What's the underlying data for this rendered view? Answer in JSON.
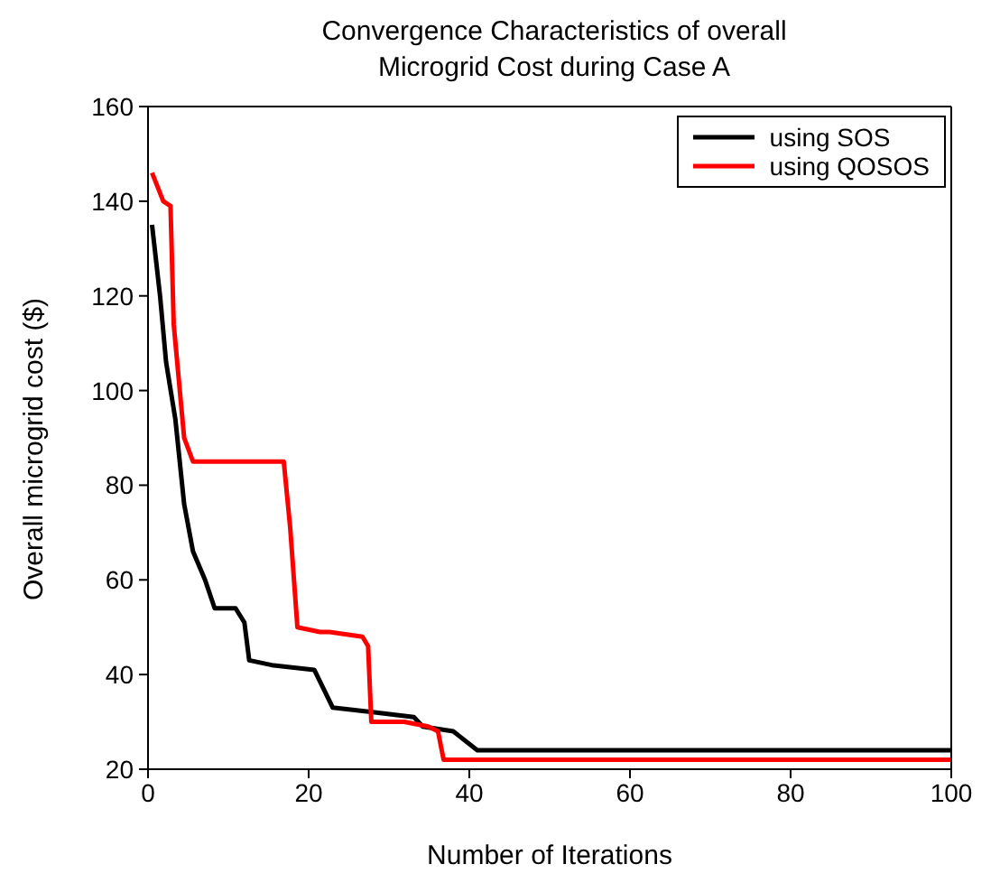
{
  "chart_data": {
    "type": "line",
    "title": "Convergence Characteristics of overall Microgrid Cost during Case A",
    "xlabel": "Number of Iterations",
    "ylabel": "Overall microgrid cost ($)",
    "xlim": [
      0,
      100
    ],
    "xticks": [
      0,
      20,
      40,
      60,
      80,
      100
    ],
    "ylim": [
      20,
      160
    ],
    "yticks": [
      20,
      40,
      60,
      80,
      100,
      120,
      140,
      160
    ],
    "grid": false,
    "legend": "top right",
    "line_style": "solid",
    "marker": "none",
    "series": [
      {
        "name": "using SOS",
        "color": "#000000",
        "x": [
          0.5,
          1.5,
          2.25,
          3.4,
          4.5,
          5.6,
          7.1,
          8.3,
          10.9,
          12,
          12.6,
          15.4,
          20.7,
          23,
          28.2,
          33.1,
          34.2,
          38,
          41,
          100
        ],
        "values": [
          135,
          120,
          106,
          94,
          76,
          66,
          60,
          54,
          54,
          51,
          43,
          42,
          41,
          33,
          32,
          31,
          29,
          28,
          24,
          24
        ]
      },
      {
        "name": "using QOSOS",
        "color": "#ff0000",
        "x": [
          0.5,
          1.9,
          2.8,
          3.2,
          4.5,
          5.6,
          16.9,
          17.7,
          18.6,
          21.4,
          22.6,
          26.7,
          27.4,
          27.8,
          31.9,
          34.9,
          36.1,
          36.8,
          100
        ],
        "values": [
          146,
          140,
          139,
          114,
          90,
          85,
          85,
          71,
          50,
          49,
          49,
          48,
          46,
          30,
          30,
          29,
          28,
          22,
          22
        ]
      }
    ]
  }
}
